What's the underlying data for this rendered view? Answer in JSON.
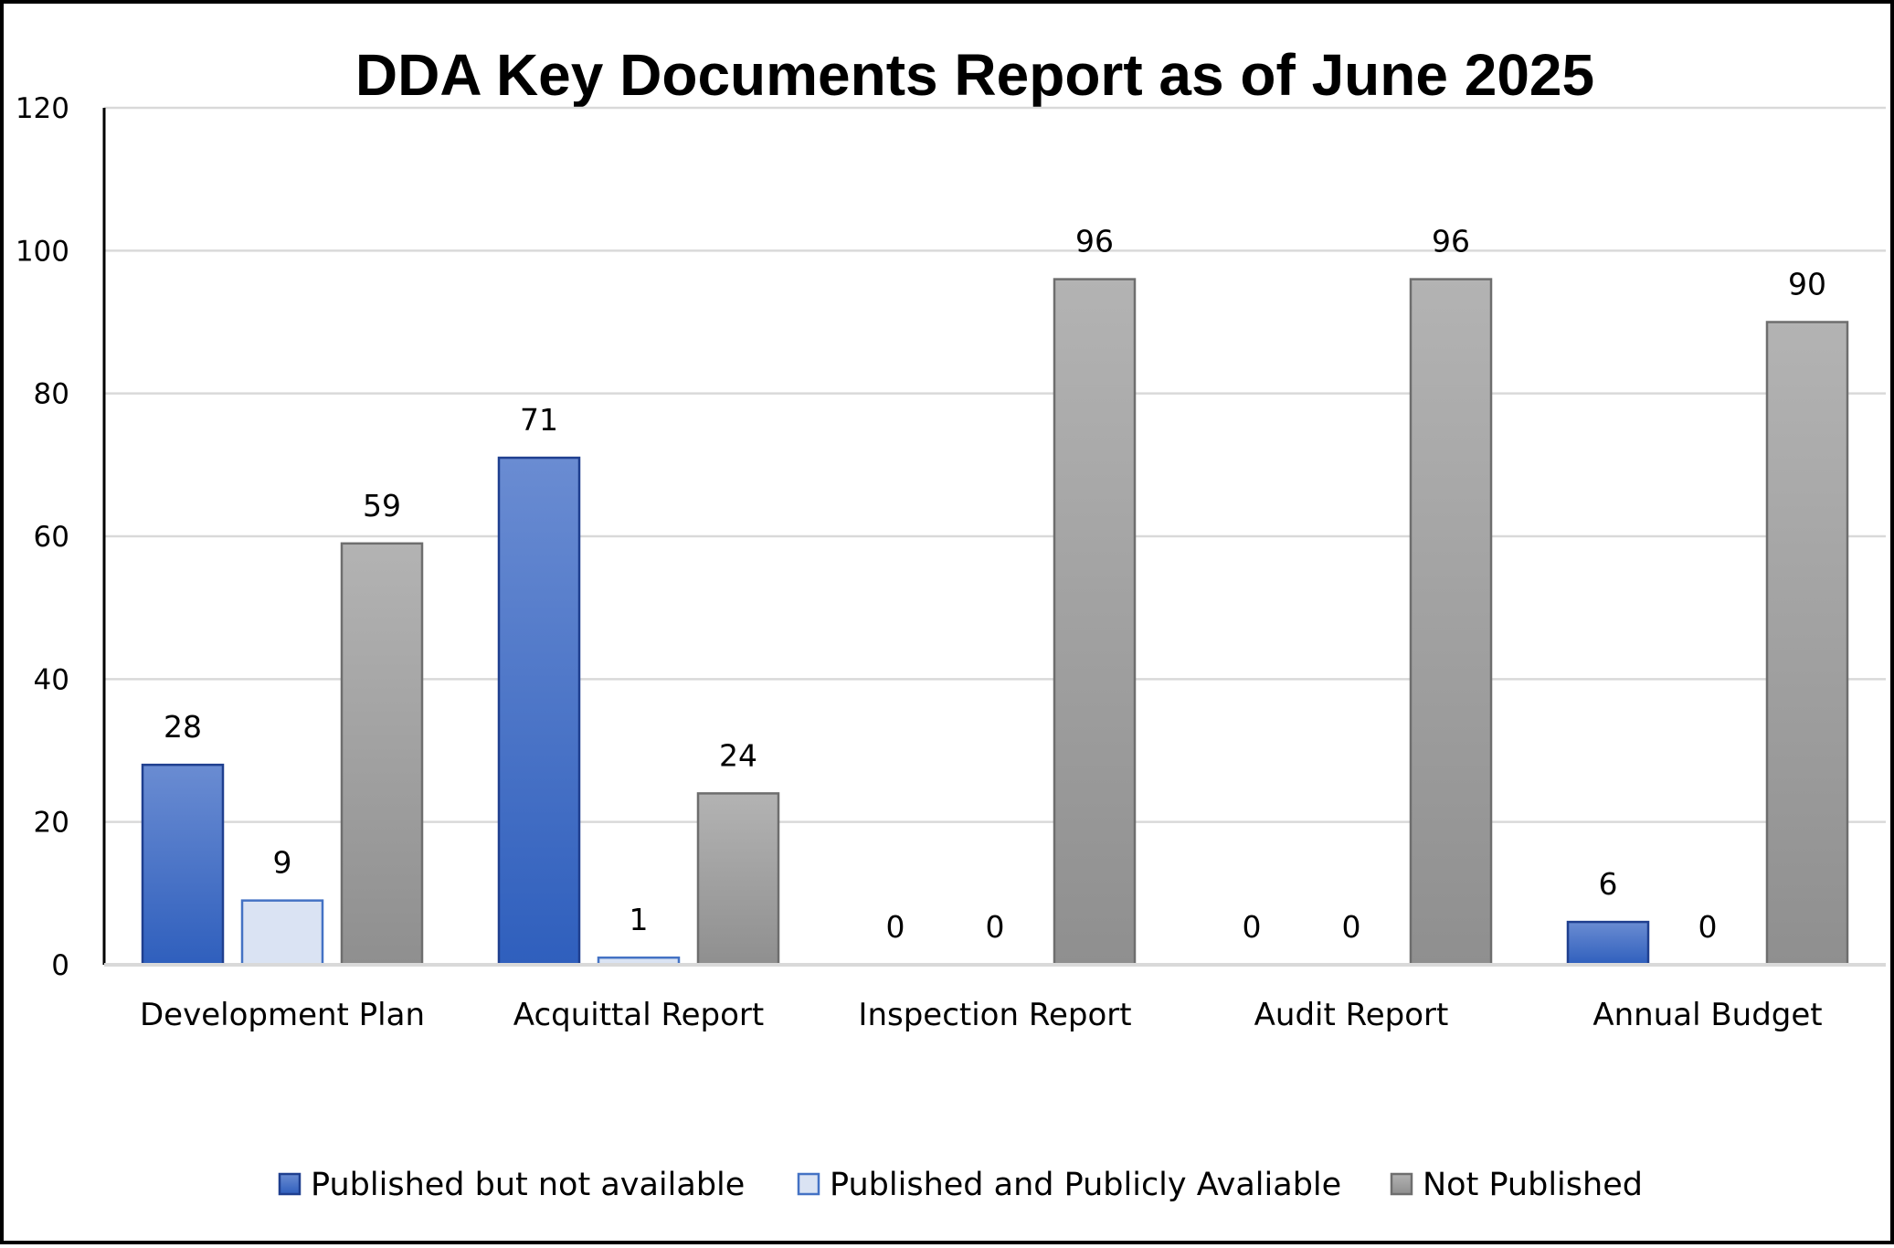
{
  "chart_data": {
    "type": "bar",
    "title": "DDA Key Documents Report as of June 2025",
    "xlabel": "",
    "ylabel": "",
    "ylim": [
      0,
      120
    ],
    "yticks": [
      0,
      20,
      40,
      60,
      80,
      100,
      120
    ],
    "grid": true,
    "legend_position": "bottom",
    "categories": [
      "Development Plan",
      "Acquittal Report",
      "Inspection Report",
      "Audit Report",
      "Annual Budget"
    ],
    "series": [
      {
        "name": "Published but not available",
        "values": [
          28,
          71,
          0,
          0,
          6
        ],
        "color": "#2F5FBD",
        "color_light": "#6A8CD2",
        "stroke": "#1F3F8F"
      },
      {
        "name": "Published and Publicly Avaliable",
        "values": [
          9,
          1,
          0,
          0,
          0
        ],
        "color": "#DAE3F3",
        "color_light": "#DAE3F3",
        "stroke": "#4472C4"
      },
      {
        "name": "Not Published",
        "values": [
          59,
          24,
          96,
          96,
          90
        ],
        "color": "#8F8F8F",
        "color_light": "#B3B3B3",
        "stroke": "#6E6E6E"
      }
    ]
  }
}
